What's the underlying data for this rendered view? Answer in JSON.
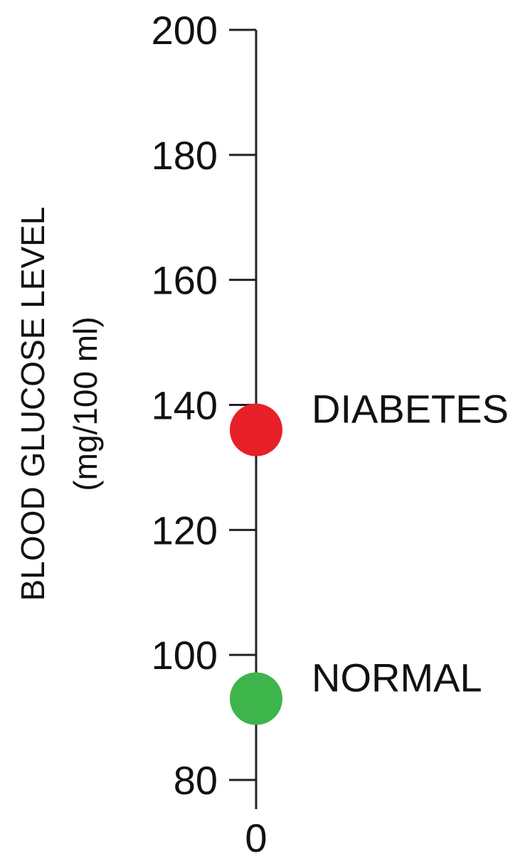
{
  "chart_data": {
    "type": "scatter",
    "title": "",
    "ylabel": "BLOOD GLUCOSE LEVEL",
    "ylabel_unit": "(mg/100 ml)",
    "xlabel": "",
    "x_tick_labels": [
      "0"
    ],
    "ylim": [
      80,
      200
    ],
    "y_ticks": [
      80,
      100,
      120,
      140,
      160,
      180,
      200
    ],
    "grid": false,
    "legend": "none",
    "points": [
      {
        "label": "DIABETES",
        "y": 136,
        "color": "#e8202a"
      },
      {
        "label": "NORMAL",
        "y": 93,
        "color": "#3db54a"
      }
    ]
  }
}
